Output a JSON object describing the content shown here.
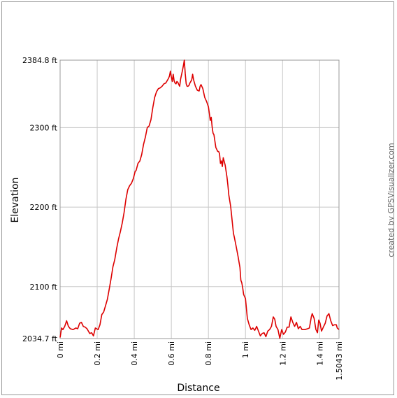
{
  "chart_data": {
    "type": "line",
    "title": "",
    "xlabel": "Distance",
    "ylabel": "Elevation",
    "credit": "created by GPSVisualizer.com",
    "xlim": [
      0,
      1.5043
    ],
    "ylim": [
      2034.7,
      2384.8
    ],
    "grid": true,
    "x_ticks": [
      {
        "value": 0,
        "label": "0 mi"
      },
      {
        "value": 0.2,
        "label": "0.2 mi"
      },
      {
        "value": 0.4,
        "label": "0.4 mi"
      },
      {
        "value": 0.6,
        "label": "0.6 mi"
      },
      {
        "value": 0.8,
        "label": "0.8 mi"
      },
      {
        "value": 1.0,
        "label": "1 mi"
      },
      {
        "value": 1.2,
        "label": "1.2 mi"
      },
      {
        "value": 1.4,
        "label": "1.4 mi"
      },
      {
        "value": 1.5043,
        "label": "1.5043 mi"
      }
    ],
    "y_ticks": [
      {
        "value": 2034.7,
        "label": "2034.7 ft"
      },
      {
        "value": 2100,
        "label": "2100 ft"
      },
      {
        "value": 2200,
        "label": "2200 ft"
      },
      {
        "value": 2300,
        "label": "2300 ft"
      },
      {
        "value": 2384.8,
        "label": "2384.8 ft"
      }
    ],
    "series": [
      {
        "color": "#dd0000",
        "points": [
          [
            0.0,
            2036
          ],
          [
            0.008,
            2048
          ],
          [
            0.015,
            2046
          ],
          [
            0.025,
            2050
          ],
          [
            0.035,
            2057
          ],
          [
            0.045,
            2050
          ],
          [
            0.055,
            2047
          ],
          [
            0.07,
            2046
          ],
          [
            0.085,
            2048
          ],
          [
            0.095,
            2047
          ],
          [
            0.105,
            2054
          ],
          [
            0.115,
            2055
          ],
          [
            0.125,
            2050
          ],
          [
            0.135,
            2049
          ],
          [
            0.145,
            2047
          ],
          [
            0.16,
            2041
          ],
          [
            0.17,
            2042
          ],
          [
            0.18,
            2038
          ],
          [
            0.19,
            2048
          ],
          [
            0.205,
            2046
          ],
          [
            0.215,
            2052
          ],
          [
            0.225,
            2065
          ],
          [
            0.235,
            2068
          ],
          [
            0.245,
            2076
          ],
          [
            0.255,
            2084
          ],
          [
            0.265,
            2097
          ],
          [
            0.275,
            2110
          ],
          [
            0.285,
            2125
          ],
          [
            0.295,
            2134
          ],
          [
            0.305,
            2148
          ],
          [
            0.315,
            2160
          ],
          [
            0.325,
            2169
          ],
          [
            0.335,
            2180
          ],
          [
            0.345,
            2193
          ],
          [
            0.355,
            2210
          ],
          [
            0.365,
            2222
          ],
          [
            0.375,
            2227
          ],
          [
            0.385,
            2230
          ],
          [
            0.395,
            2236
          ],
          [
            0.405,
            2245
          ],
          [
            0.41,
            2246
          ],
          [
            0.42,
            2255
          ],
          [
            0.43,
            2258
          ],
          [
            0.44,
            2266
          ],
          [
            0.45,
            2279
          ],
          [
            0.46,
            2288
          ],
          [
            0.47,
            2300
          ],
          [
            0.48,
            2302
          ],
          [
            0.49,
            2310
          ],
          [
            0.5,
            2325
          ],
          [
            0.51,
            2338
          ],
          [
            0.52,
            2345
          ],
          [
            0.53,
            2349
          ],
          [
            0.54,
            2350
          ],
          [
            0.55,
            2352
          ],
          [
            0.56,
            2355
          ],
          [
            0.57,
            2356
          ],
          [
            0.575,
            2358
          ],
          [
            0.585,
            2362
          ],
          [
            0.59,
            2365
          ],
          [
            0.595,
            2371
          ],
          [
            0.6,
            2364
          ],
          [
            0.605,
            2358
          ],
          [
            0.61,
            2367
          ],
          [
            0.615,
            2359
          ],
          [
            0.62,
            2356
          ],
          [
            0.625,
            2355
          ],
          [
            0.63,
            2358
          ],
          [
            0.635,
            2357
          ],
          [
            0.64,
            2354
          ],
          [
            0.645,
            2352
          ],
          [
            0.65,
            2361
          ],
          [
            0.66,
            2372
          ],
          [
            0.665,
            2378
          ],
          [
            0.67,
            2384.8
          ],
          [
            0.675,
            2368
          ],
          [
            0.68,
            2355
          ],
          [
            0.685,
            2352
          ],
          [
            0.69,
            2352
          ],
          [
            0.695,
            2353
          ],
          [
            0.7,
            2356
          ],
          [
            0.71,
            2360
          ],
          [
            0.715,
            2367
          ],
          [
            0.72,
            2360
          ],
          [
            0.73,
            2352
          ],
          [
            0.74,
            2347
          ],
          [
            0.75,
            2346
          ],
          [
            0.755,
            2352
          ],
          [
            0.76,
            2354
          ],
          [
            0.77,
            2349
          ],
          [
            0.78,
            2338
          ],
          [
            0.79,
            2333
          ],
          [
            0.8,
            2326
          ],
          [
            0.805,
            2318
          ],
          [
            0.81,
            2309
          ],
          [
            0.815,
            2313
          ],
          [
            0.82,
            2301
          ],
          [
            0.825,
            2293
          ],
          [
            0.83,
            2291
          ],
          [
            0.84,
            2275
          ],
          [
            0.85,
            2270
          ],
          [
            0.855,
            2270
          ],
          [
            0.86,
            2267
          ],
          [
            0.865,
            2255
          ],
          [
            0.87,
            2258
          ],
          [
            0.875,
            2251
          ],
          [
            0.88,
            2262
          ],
          [
            0.89,
            2253
          ],
          [
            0.9,
            2238
          ],
          [
            0.905,
            2228
          ],
          [
            0.91,
            2215
          ],
          [
            0.915,
            2208
          ],
          [
            0.92,
            2201
          ],
          [
            0.925,
            2190
          ],
          [
            0.93,
            2178
          ],
          [
            0.935,
            2167
          ],
          [
            0.94,
            2162
          ],
          [
            0.95,
            2150
          ],
          [
            0.96,
            2138
          ],
          [
            0.97,
            2124
          ],
          [
            0.975,
            2108
          ],
          [
            0.98,
            2105
          ],
          [
            0.985,
            2098
          ],
          [
            0.99,
            2090
          ],
          [
            1.0,
            2085
          ],
          [
            1.01,
            2060
          ],
          [
            1.02,
            2052
          ],
          [
            1.03,
            2046
          ],
          [
            1.04,
            2048
          ],
          [
            1.05,
            2045
          ],
          [
            1.06,
            2050
          ],
          [
            1.07,
            2044
          ],
          [
            1.08,
            2038
          ],
          [
            1.09,
            2041
          ],
          [
            1.1,
            2042
          ],
          [
            1.11,
            2037
          ],
          [
            1.12,
            2044
          ],
          [
            1.13,
            2046
          ],
          [
            1.14,
            2050
          ],
          [
            1.15,
            2062
          ],
          [
            1.158,
            2059
          ],
          [
            1.165,
            2050
          ],
          [
            1.175,
            2046
          ],
          [
            1.185,
            2035
          ],
          [
            1.195,
            2046
          ],
          [
            1.205,
            2040
          ],
          [
            1.215,
            2043
          ],
          [
            1.225,
            2049
          ],
          [
            1.235,
            2049
          ],
          [
            1.245,
            2062
          ],
          [
            1.255,
            2055
          ],
          [
            1.265,
            2050
          ],
          [
            1.275,
            2055
          ],
          [
            1.285,
            2047
          ],
          [
            1.295,
            2050
          ],
          [
            1.305,
            2046
          ],
          [
            1.32,
            2046
          ],
          [
            1.335,
            2047
          ],
          [
            1.345,
            2048
          ],
          [
            1.355,
            2062
          ],
          [
            1.36,
            2066
          ],
          [
            1.37,
            2060
          ],
          [
            1.38,
            2046
          ],
          [
            1.388,
            2042
          ],
          [
            1.395,
            2058
          ],
          [
            1.402,
            2054
          ],
          [
            1.41,
            2044
          ],
          [
            1.42,
            2049
          ],
          [
            1.43,
            2054
          ],
          [
            1.44,
            2063
          ],
          [
            1.45,
            2066
          ],
          [
            1.46,
            2057
          ],
          [
            1.47,
            2051
          ],
          [
            1.48,
            2052
          ],
          [
            1.49,
            2052
          ],
          [
            1.495,
            2048
          ],
          [
            1.5043,
            2046
          ]
        ]
      }
    ]
  }
}
